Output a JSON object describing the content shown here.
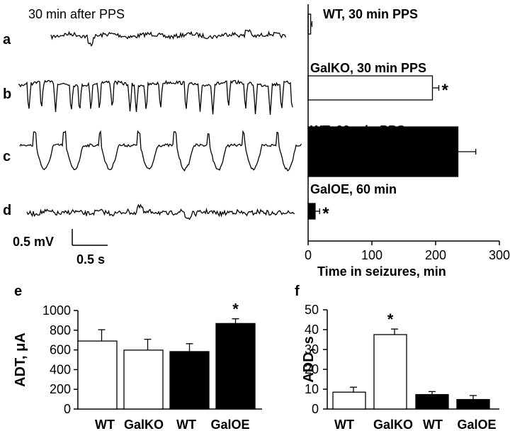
{
  "traces": {
    "title": "30 min after PPS",
    "labels": [
      "a",
      "b",
      "c",
      "d"
    ],
    "scalebar_voltage": "0.5 mV",
    "scalebar_time": "0.5 s"
  },
  "chart_data": [
    {
      "type": "bar",
      "orientation": "horizontal",
      "categories": [
        "WT, 30 min PPS",
        "GalKO, 30 min PPS",
        "WT, 60 min PPS",
        "GalOE, 60 min"
      ],
      "values": [
        4,
        195,
        235,
        11
      ],
      "errors": [
        2,
        10,
        28,
        7
      ],
      "fills": [
        "#ffffff",
        "#ffffff",
        "#000000",
        "#000000"
      ],
      "significance": [
        "",
        "*",
        "",
        "*"
      ],
      "xlabel": "Time in seizures, min",
      "xlim": [
        0,
        300
      ],
      "xticks": [
        "0",
        "100",
        "200",
        "300"
      ],
      "grid": false
    },
    {
      "type": "bar",
      "panel": "e",
      "categories": [
        "WT",
        "GalKO",
        "WT",
        "GalOE"
      ],
      "values": [
        690,
        598,
        583,
        868
      ],
      "errors": [
        115,
        110,
        80,
        48
      ],
      "fills": [
        "#ffffff",
        "#ffffff",
        "#000000",
        "#000000"
      ],
      "significance": [
        "",
        "",
        "",
        "*"
      ],
      "ylabel": "ADT, μA",
      "ylim": [
        0,
        1000
      ],
      "yticks": [
        "0",
        "200",
        "400",
        "600",
        "800",
        "1000"
      ],
      "grid": false
    },
    {
      "type": "bar",
      "panel": "f",
      "categories": [
        "WT",
        "GalKO",
        "WT",
        "GalOE"
      ],
      "values": [
        8.5,
        37.5,
        7.3,
        4.8
      ],
      "errors": [
        2.5,
        2.8,
        1.5,
        2.0
      ],
      "fills": [
        "#ffffff",
        "#ffffff",
        "#000000",
        "#000000"
      ],
      "significance": [
        "",
        "*",
        "",
        ""
      ],
      "ylabel": "ADD, s",
      "ylim": [
        0,
        50
      ],
      "yticks": [
        "0",
        "10",
        "20",
        "30",
        "40",
        "50"
      ],
      "grid": false
    }
  ]
}
